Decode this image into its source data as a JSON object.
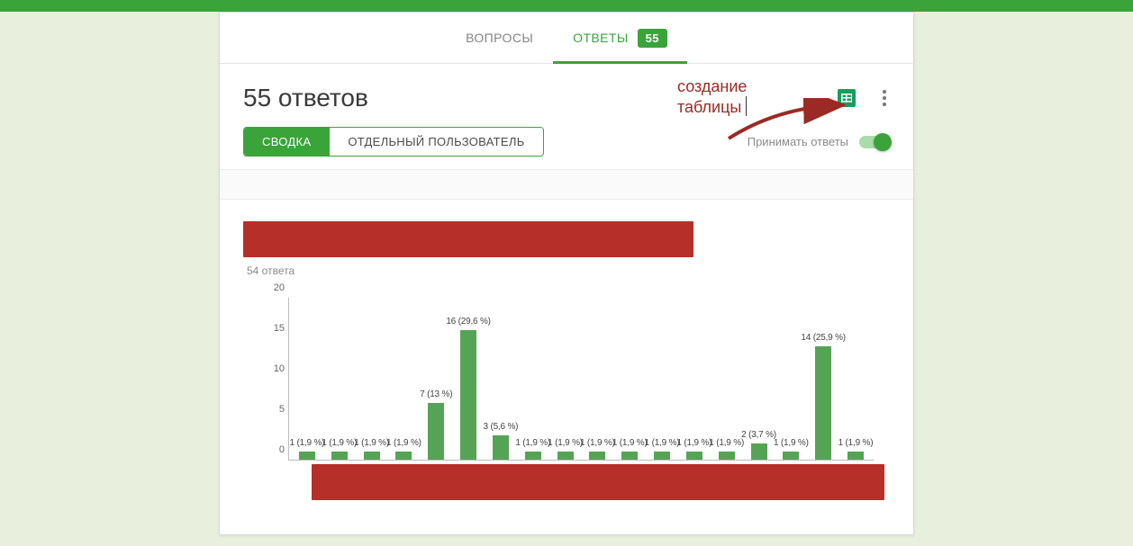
{
  "page_background": "#e8f0dd",
  "topbar_color": "#3aa43a",
  "tabs": {
    "questions": "ВОПРОСЫ",
    "responses": "ОТВЕТЫ",
    "count_badge": "55",
    "inactive_color": "#838383",
    "active_color": "#3aa43a"
  },
  "header": {
    "title": "55 ответов"
  },
  "annotation": {
    "line1": "создание",
    "line2": "таблицы",
    "text_color": "#9b2a24",
    "arrow_color": "#9b2a24"
  },
  "view_toggle": {
    "summary": "СВОДКА",
    "individual": "ОТДЕЛЬНЫЙ ПОЛЬЗОВАТЕЛЬ"
  },
  "accept_toggle": {
    "label": "Принимать ответы",
    "on": true
  },
  "question": {
    "redacted_color": "#b62f29",
    "response_count_label": "54 ответа"
  },
  "chart": {
    "type": "bar",
    "ylim": [
      0,
      20
    ],
    "ytick_step": 5,
    "yticks": [
      0,
      5,
      10,
      15,
      20
    ],
    "bar_color": "#55a455",
    "axis_color": "#bcbcbc",
    "label_color": "#444444",
    "label_fontsize": 10,
    "tick_fontsize": 11,
    "bars": [
      {
        "value": 1,
        "label": "1 (1,9 %)"
      },
      {
        "value": 1,
        "label": "1 (1,9 %)"
      },
      {
        "value": 1,
        "label": "1 (1,9 %)"
      },
      {
        "value": 1,
        "label": "1 (1,9 %)"
      },
      {
        "value": 7,
        "label": "7 (13 %)"
      },
      {
        "value": 16,
        "label": "16 (29,6 %)"
      },
      {
        "value": 3,
        "label": "3 (5,6 %)"
      },
      {
        "value": 1,
        "label": "1 (1,9 %)"
      },
      {
        "value": 1,
        "label": "1 (1,9 %)"
      },
      {
        "value": 1,
        "label": "1 (1,9 %)"
      },
      {
        "value": 1,
        "label": "1 (1,9 %)"
      },
      {
        "value": 1,
        "label": "1 (1,9 %)"
      },
      {
        "value": 1,
        "label": "1 (1,9 %)"
      },
      {
        "value": 1,
        "label": "1 (1,9 %)"
      },
      {
        "value": 2,
        "label": "2 (3,7 %)"
      },
      {
        "value": 1,
        "label": "1 (1,9 %)"
      },
      {
        "value": 14,
        "label": "14 (25,9 %)"
      },
      {
        "value": 1,
        "label": "1 (1,9 %)"
      }
    ]
  }
}
